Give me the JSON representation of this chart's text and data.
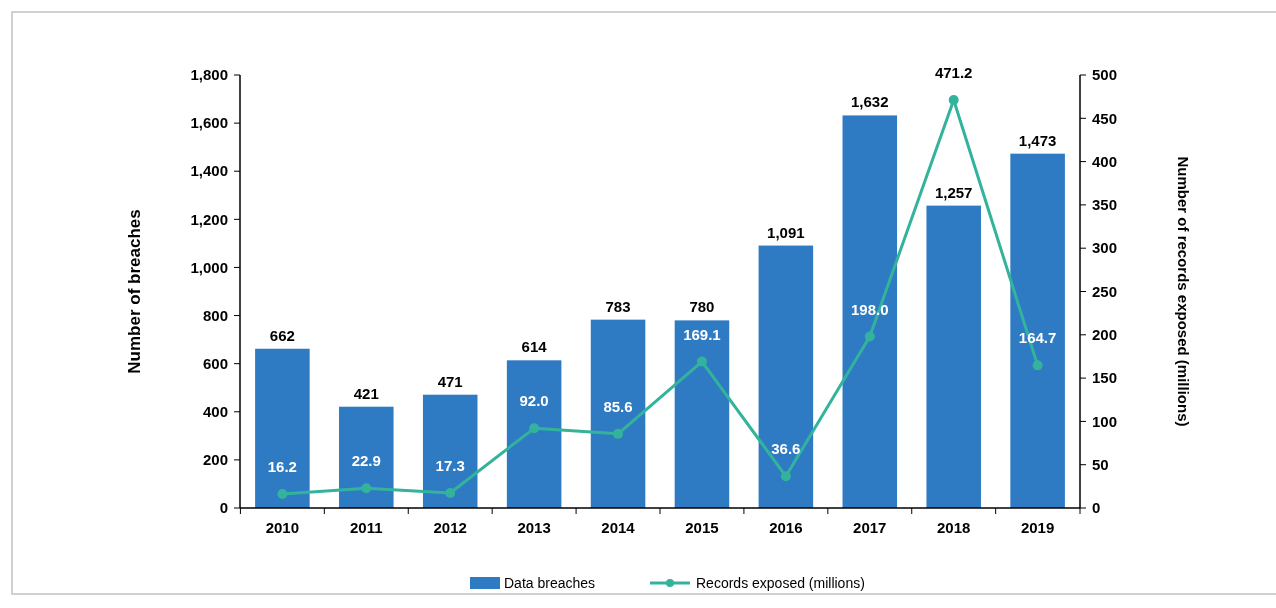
{
  "chart_data": {
    "type": "bar",
    "ylabel": "Number of breaches",
    "y2label": "Number of records exposed (millions)",
    "categories": [
      "2010",
      "2011",
      "2012",
      "2013",
      "2014",
      "2015",
      "2016",
      "2017",
      "2018",
      "2019"
    ],
    "series": [
      {
        "name": "Data breaches",
        "color": "#2e7bc4",
        "values": [
          662,
          421,
          471,
          614,
          783,
          780,
          1091,
          1632,
          1257,
          1473
        ],
        "value_labels": [
          "662",
          "421",
          "471",
          "614",
          "783",
          "780",
          "1,091",
          "1,632",
          "1,257",
          "1,473"
        ]
      },
      {
        "name": "Records exposed (millions)",
        "type": "line",
        "axis": "y2",
        "color": "#33b39b",
        "marker": "circle",
        "values": [
          16.2,
          22.9,
          17.3,
          92.0,
          85.6,
          169.1,
          36.6,
          198.0,
          471.2,
          164.7
        ],
        "value_labels": [
          "16.2",
          "22.9",
          "17.3",
          "92.0",
          "85.6",
          "169.1",
          "36.6",
          "198.0",
          "471.2",
          "164.7"
        ]
      }
    ],
    "ylim": [
      0,
      1800
    ],
    "yticks": [
      0,
      200,
      400,
      600,
      800,
      {
        "value": 1000,
        "label": "1,000"
      },
      {
        "value": 1200,
        "label": "1,200"
      },
      {
        "value": 1400,
        "label": "1,400"
      },
      {
        "value": 1600,
        "label": "1,600"
      },
      {
        "value": 1800,
        "label": "1,800"
      }
    ],
    "y2lim": [
      0,
      500
    ],
    "y2ticks": [
      0,
      50,
      100,
      150,
      200,
      250,
      300,
      350,
      400,
      450,
      500
    ],
    "grid": false,
    "legend": "bottom"
  }
}
